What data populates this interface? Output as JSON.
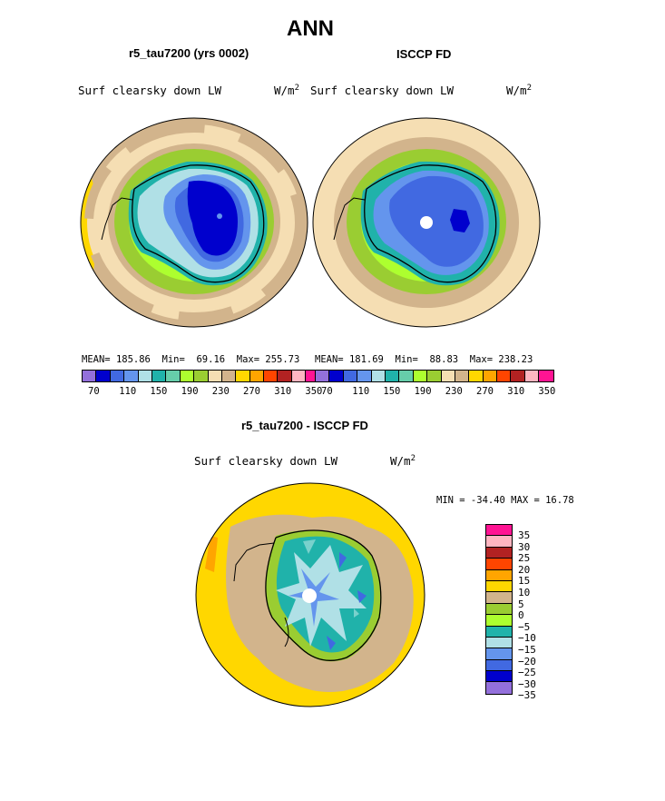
{
  "figure_title": "ANN",
  "panels": {
    "model": {
      "title": "r5_tau7200 (yrs 0002)",
      "field": "Surf clearsky down LW",
      "units": "W/m",
      "units_exp": "2",
      "mean_label": "MEAN=",
      "mean": "185.86",
      "min_label": "Min=",
      "min": "69.16",
      "max_label": "Max=",
      "max": "255.73"
    },
    "obs": {
      "title": "ISCCP FD",
      "field": "Surf clearsky down LW",
      "units": "W/m",
      "units_exp": "2",
      "mean_label": "MEAN=",
      "mean": "181.69",
      "min_label": "Min=",
      "min": "88.83",
      "max_label": "Max=",
      "max": "238.23"
    },
    "diff": {
      "title": "r5_tau7200 - ISCCP FD",
      "field": "Surf clearsky down LW",
      "units": "W/m",
      "units_exp": "2",
      "minmax_text": "MIN = -34.40 MAX =  16.78"
    }
  },
  "colorbar_top": {
    "colors": [
      "#9370db",
      "#0000cd",
      "#4169e1",
      "#6495ed",
      "#b0e0e6",
      "#20b2aa",
      "#66cdaa",
      "#adff2f",
      "#9acd32",
      "#f5deb3",
      "#d2b48c",
      "#ffd700",
      "#ffa500",
      "#ff4500",
      "#b22222",
      "#ffb6c1",
      "#ff1493"
    ],
    "labels": [
      "70",
      "110",
      "150",
      "190",
      "230",
      "270",
      "310",
      "350"
    ]
  },
  "colorbar_diff": {
    "colors_top_to_bottom": [
      "#ff1493",
      "#ffb6c1",
      "#b22222",
      "#ff4500",
      "#ffa500",
      "#ffd700",
      "#d2b48c",
      "#9acd32",
      "#adff2f",
      "#20b2aa",
      "#b0e0e6",
      "#6495ed",
      "#4169e1",
      "#0000cd",
      "#9370db"
    ],
    "labels_top_to_bottom": [
      "35",
      "30",
      "25",
      "20",
      "15",
      "10",
      "5",
      "0",
      "−5",
      "−10",
      "−15",
      "−20",
      "−25",
      "−30",
      "−35"
    ]
  }
}
